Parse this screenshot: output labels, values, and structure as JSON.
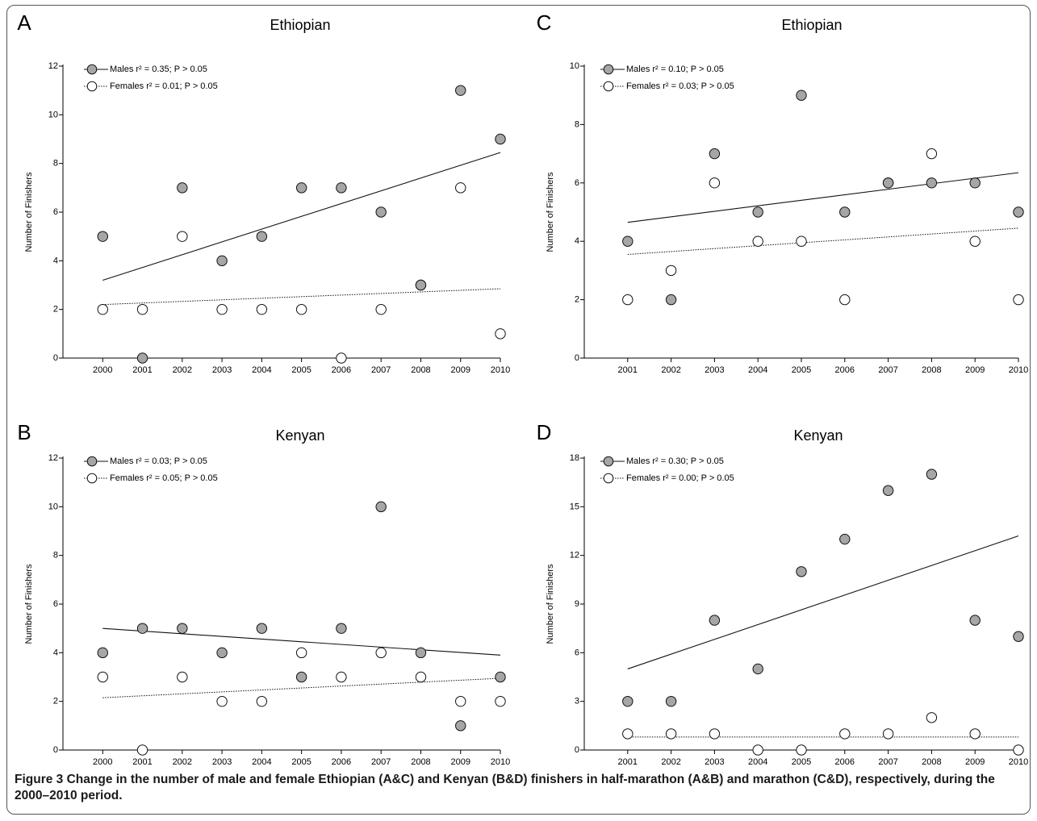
{
  "panels": [
    {
      "letter": "A",
      "title": "Ethiopian",
      "ylabel": "Number of Finishers",
      "legend": {
        "males_label": "Males r² = 0.35; P > 0.05",
        "females_label": "Females r² = 0.01; P > 0.05"
      }
    },
    {
      "letter": "C",
      "title": "Ethiopian",
      "ylabel": "Number of Finishers",
      "legend": {
        "males_label": "Males r² = 0.10; P > 0.05",
        "females_label": "Females r² = 0.03; P > 0.05"
      }
    },
    {
      "letter": "B",
      "title": "Kenyan",
      "ylabel": "Number of Finishers",
      "legend": {
        "males_label": "Males r² = 0.03; P > 0.05",
        "females_label": "Females r² = 0.05; P > 0.05"
      }
    },
    {
      "letter": "D",
      "title": "Kenyan",
      "ylabel": "Number of Finishers",
      "legend": {
        "males_label": "Males r² = 0.30; P > 0.05",
        "females_label": "Females r² = 0.00; P > 0.05"
      }
    }
  ],
  "caption": {
    "label": "Figure 3",
    "text": "Change in the number of male and female Ethiopian (A&C) and Kenyan (B&D) finishers in half-marathon (A&B) and marathon (C&D), respectively, during the 2000–2010 period."
  },
  "colors": {
    "males_fill": "#a6a6a6",
    "females_fill": "#ffffff",
    "marker_stroke": "#111111",
    "frame": "#555555"
  },
  "chart_data": [
    {
      "panel": "A",
      "type": "scatter",
      "title": "Ethiopian",
      "xlabel": "",
      "ylabel": "Number of Finishers",
      "x": [
        2000,
        2001,
        2002,
        2003,
        2004,
        2005,
        2006,
        2007,
        2008,
        2009,
        2010
      ],
      "xlim": [
        1999,
        2010
      ],
      "ylim": [
        0,
        12
      ],
      "yticks": [
        0,
        2,
        4,
        6,
        8,
        10,
        12
      ],
      "series": [
        {
          "name": "Males",
          "marker": "filled",
          "values": [
            5,
            0,
            7,
            4,
            5,
            7,
            7,
            6,
            3,
            11,
            9
          ],
          "trend": {
            "style": "solid",
            "start": 3.2,
            "end": 8.45
          }
        },
        {
          "name": "Females",
          "marker": "open",
          "values": [
            2,
            2,
            5,
            2,
            2,
            2,
            0,
            2,
            3,
            7,
            1
          ],
          "trend": {
            "style": "dotted",
            "start": 2.2,
            "end": 2.85
          }
        }
      ]
    },
    {
      "panel": "C",
      "type": "scatter",
      "title": "Ethiopian",
      "xlabel": "",
      "ylabel": "Number of Finishers",
      "x": [
        2001,
        2002,
        2003,
        2004,
        2005,
        2006,
        2007,
        2008,
        2009,
        2010
      ],
      "xlim": [
        2000,
        2010
      ],
      "ylim": [
        0,
        10
      ],
      "yticks": [
        0,
        2,
        4,
        6,
        8,
        10
      ],
      "series": [
        {
          "name": "Males",
          "marker": "filled",
          "values": [
            4,
            2,
            7,
            5,
            9,
            5,
            6,
            6,
            6,
            5
          ],
          "trend": {
            "style": "solid",
            "start": 4.65,
            "end": 6.35
          }
        },
        {
          "name": "Females",
          "marker": "open",
          "values": [
            2,
            3,
            6,
            4,
            4,
            2,
            6,
            7,
            4,
            2
          ],
          "trend": {
            "style": "dotted",
            "start": 3.55,
            "end": 4.45
          }
        }
      ]
    },
    {
      "panel": "B",
      "type": "scatter",
      "title": "Kenyan",
      "xlabel": "",
      "ylabel": "Number of Finishers",
      "x": [
        2000,
        2001,
        2002,
        2003,
        2004,
        2005,
        2006,
        2007,
        2008,
        2009,
        2010
      ],
      "xlim": [
        1999,
        2010
      ],
      "ylim": [
        0,
        12
      ],
      "yticks": [
        0,
        2,
        4,
        6,
        8,
        10,
        12
      ],
      "series": [
        {
          "name": "Males",
          "marker": "filled",
          "values": [
            4,
            5,
            5,
            4,
            5,
            3,
            5,
            10,
            4,
            1,
            3
          ],
          "trend": {
            "style": "solid",
            "start": 5.0,
            "end": 3.9
          }
        },
        {
          "name": "Females",
          "marker": "open",
          "values": [
            3,
            0,
            3,
            2,
            2,
            4,
            3,
            4,
            3,
            2,
            2
          ],
          "trend": {
            "style": "dotted",
            "start": 2.15,
            "end": 2.95
          }
        }
      ]
    },
    {
      "panel": "D",
      "type": "scatter",
      "title": "Kenyan",
      "xlabel": "",
      "ylabel": "Number of Finishers",
      "x": [
        2001,
        2002,
        2003,
        2004,
        2005,
        2006,
        2007,
        2008,
        2009,
        2010
      ],
      "xlim": [
        2000,
        2010
      ],
      "ylim": [
        0,
        18
      ],
      "yticks": [
        0,
        3,
        6,
        9,
        12,
        15,
        18
      ],
      "series": [
        {
          "name": "Males",
          "marker": "filled",
          "values": [
            3,
            3,
            8,
            5,
            11,
            13,
            16,
            17,
            8,
            7
          ],
          "trend": {
            "style": "solid",
            "start": 5.0,
            "end": 13.2
          }
        },
        {
          "name": "Females",
          "marker": "open",
          "values": [
            1,
            1,
            1,
            0,
            0,
            1,
            1,
            2,
            1,
            0
          ],
          "trend": {
            "style": "dotted",
            "start": 0.8,
            "end": 0.8
          }
        }
      ]
    }
  ]
}
